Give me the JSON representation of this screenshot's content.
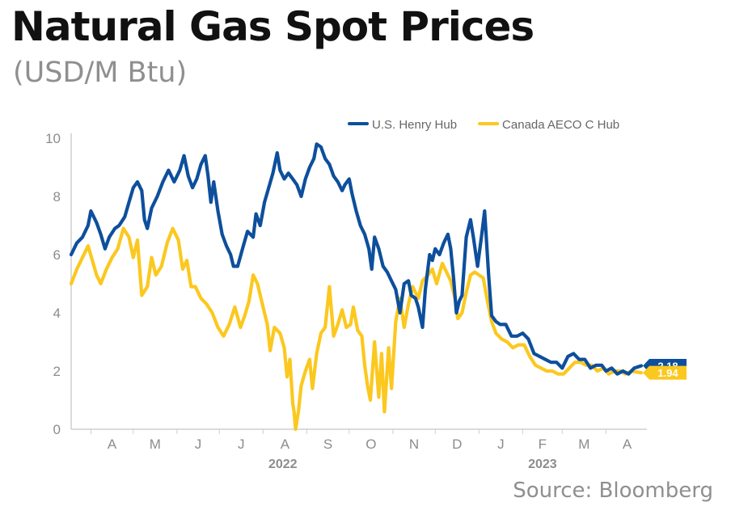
{
  "header": {
    "title": "Natural Gas Spot Prices",
    "subtitle": "(USD/M Btu)"
  },
  "source": "Source: Bloomberg",
  "colors": {
    "henry": "#0d4f9c",
    "aeco": "#fbc81f",
    "axis": "#cfcfcf",
    "text": "#8c8c8c"
  },
  "chart_data": {
    "type": "line",
    "ylim": [
      0,
      10
    ],
    "yticks": [
      "0",
      "2",
      "4",
      "6",
      "8",
      "10"
    ],
    "x_range": [
      "2022-03-18",
      "2023-04-30"
    ],
    "months": [
      {
        "label": "A",
        "date": "2022-04-01"
      },
      {
        "label": "M",
        "date": "2022-05-01"
      },
      {
        "label": "J",
        "date": "2022-06-01"
      },
      {
        "label": "J",
        "date": "2022-07-01"
      },
      {
        "label": "A",
        "date": "2022-08-01"
      },
      {
        "label": "S",
        "date": "2022-09-01"
      },
      {
        "label": "O",
        "date": "2022-10-01"
      },
      {
        "label": "N",
        "date": "2022-11-01"
      },
      {
        "label": "D",
        "date": "2022-12-01"
      },
      {
        "label": "J",
        "date": "2023-01-01"
      },
      {
        "label": "F",
        "date": "2023-02-01"
      },
      {
        "label": "M",
        "date": "2023-03-01"
      },
      {
        "label": "A",
        "date": "2023-04-01"
      }
    ],
    "years": [
      {
        "label": "2022",
        "date": "2022-08-15"
      },
      {
        "label": "2023",
        "date": "2023-02-15"
      }
    ],
    "legend": {
      "position": "top-right"
    },
    "series": [
      {
        "name": "U.S. Henry Hub",
        "color": "#0d4f9c",
        "end_label": "2.18",
        "points": [
          [
            "2022-03-18",
            6.0
          ],
          [
            "2022-03-22",
            6.4
          ],
          [
            "2022-03-26",
            6.6
          ],
          [
            "2022-03-30",
            7.0
          ],
          [
            "2022-04-01",
            7.5
          ],
          [
            "2022-04-05",
            7.1
          ],
          [
            "2022-04-08",
            6.7
          ],
          [
            "2022-04-11",
            6.2
          ],
          [
            "2022-04-14",
            6.6
          ],
          [
            "2022-04-18",
            6.9
          ],
          [
            "2022-04-21",
            7.0
          ],
          [
            "2022-04-25",
            7.3
          ],
          [
            "2022-04-28",
            7.8
          ],
          [
            "2022-05-01",
            8.3
          ],
          [
            "2022-05-04",
            8.5
          ],
          [
            "2022-05-07",
            8.2
          ],
          [
            "2022-05-09",
            7.2
          ],
          [
            "2022-05-11",
            6.9
          ],
          [
            "2022-05-14",
            7.6
          ],
          [
            "2022-05-18",
            8.0
          ],
          [
            "2022-05-22",
            8.5
          ],
          [
            "2022-05-26",
            8.9
          ],
          [
            "2022-05-30",
            8.5
          ],
          [
            "2022-06-03",
            8.9
          ],
          [
            "2022-06-06",
            9.4
          ],
          [
            "2022-06-09",
            8.7
          ],
          [
            "2022-06-12",
            8.3
          ],
          [
            "2022-06-15",
            8.6
          ],
          [
            "2022-06-18",
            9.1
          ],
          [
            "2022-06-21",
            9.4
          ],
          [
            "2022-06-23",
            8.7
          ],
          [
            "2022-06-25",
            7.8
          ],
          [
            "2022-06-27",
            8.5
          ],
          [
            "2022-06-30",
            7.5
          ],
          [
            "2022-07-03",
            6.7
          ],
          [
            "2022-07-06",
            6.3
          ],
          [
            "2022-07-09",
            6.0
          ],
          [
            "2022-07-11",
            5.6
          ],
          [
            "2022-07-14",
            5.6
          ],
          [
            "2022-07-18",
            6.3
          ],
          [
            "2022-07-21",
            6.8
          ],
          [
            "2022-07-25",
            6.6
          ],
          [
            "2022-07-27",
            7.4
          ],
          [
            "2022-07-30",
            7.0
          ],
          [
            "2022-08-02",
            7.8
          ],
          [
            "2022-08-05",
            8.3
          ],
          [
            "2022-08-08",
            8.8
          ],
          [
            "2022-08-11",
            9.5
          ],
          [
            "2022-08-13",
            8.9
          ],
          [
            "2022-08-16",
            8.6
          ],
          [
            "2022-08-19",
            8.8
          ],
          [
            "2022-08-22",
            8.6
          ],
          [
            "2022-08-25",
            8.4
          ],
          [
            "2022-08-28",
            8.0
          ],
          [
            "2022-08-31",
            8.6
          ],
          [
            "2022-09-03",
            9.0
          ],
          [
            "2022-09-06",
            9.3
          ],
          [
            "2022-09-08",
            9.8
          ],
          [
            "2022-09-11",
            9.7
          ],
          [
            "2022-09-14",
            9.3
          ],
          [
            "2022-09-17",
            9.1
          ],
          [
            "2022-09-20",
            8.7
          ],
          [
            "2022-09-23",
            8.5
          ],
          [
            "2022-09-26",
            8.2
          ],
          [
            "2022-09-28",
            8.4
          ],
          [
            "2022-10-01",
            8.6
          ],
          [
            "2022-10-03",
            8.1
          ],
          [
            "2022-10-06",
            7.5
          ],
          [
            "2022-10-09",
            7.0
          ],
          [
            "2022-10-12",
            6.7
          ],
          [
            "2022-10-15",
            6.2
          ],
          [
            "2022-10-17",
            5.5
          ],
          [
            "2022-10-19",
            6.6
          ],
          [
            "2022-10-22",
            6.2
          ],
          [
            "2022-10-25",
            5.6
          ],
          [
            "2022-10-28",
            5.4
          ],
          [
            "2022-10-31",
            5.1
          ],
          [
            "2022-11-03",
            4.8
          ],
          [
            "2022-11-06",
            4.0
          ],
          [
            "2022-11-09",
            5.0
          ],
          [
            "2022-11-12",
            5.1
          ],
          [
            "2022-11-14",
            4.6
          ],
          [
            "2022-11-17",
            4.5
          ],
          [
            "2022-11-19",
            4.2
          ],
          [
            "2022-11-22",
            3.5
          ],
          [
            "2022-11-24",
            4.8
          ],
          [
            "2022-11-27",
            6.0
          ],
          [
            "2022-11-29",
            5.8
          ],
          [
            "2022-12-01",
            6.2
          ],
          [
            "2022-12-04",
            6.0
          ],
          [
            "2022-12-07",
            6.4
          ],
          [
            "2022-12-10",
            6.7
          ],
          [
            "2022-12-12",
            6.2
          ],
          [
            "2022-12-14",
            5.2
          ],
          [
            "2022-12-16",
            4.0
          ],
          [
            "2022-12-18",
            4.4
          ],
          [
            "2022-12-20",
            4.6
          ],
          [
            "2022-12-23",
            6.6
          ],
          [
            "2022-12-26",
            7.2
          ],
          [
            "2022-12-28",
            6.6
          ],
          [
            "2022-12-31",
            5.6
          ],
          [
            "2023-01-03",
            6.7
          ],
          [
            "2023-01-05",
            7.5
          ],
          [
            "2023-01-08",
            5.2
          ],
          [
            "2023-01-10",
            3.9
          ],
          [
            "2023-01-13",
            3.7
          ],
          [
            "2023-01-16",
            3.6
          ],
          [
            "2023-01-20",
            3.6
          ],
          [
            "2023-01-24",
            3.2
          ],
          [
            "2023-01-28",
            3.2
          ],
          [
            "2023-02-01",
            3.3
          ],
          [
            "2023-02-05",
            3.1
          ],
          [
            "2023-02-09",
            2.6
          ],
          [
            "2023-02-13",
            2.5
          ],
          [
            "2023-02-17",
            2.4
          ],
          [
            "2023-02-21",
            2.3
          ],
          [
            "2023-02-25",
            2.3
          ],
          [
            "2023-03-01",
            2.1
          ],
          [
            "2023-03-05",
            2.5
          ],
          [
            "2023-03-09",
            2.6
          ],
          [
            "2023-03-13",
            2.4
          ],
          [
            "2023-03-17",
            2.4
          ],
          [
            "2023-03-21",
            2.1
          ],
          [
            "2023-03-25",
            2.2
          ],
          [
            "2023-03-29",
            2.2
          ],
          [
            "2023-04-01",
            2.0
          ],
          [
            "2023-04-05",
            2.1
          ],
          [
            "2023-04-09",
            1.9
          ],
          [
            "2023-04-13",
            2.0
          ],
          [
            "2023-04-17",
            1.9
          ],
          [
            "2023-04-21",
            2.1
          ],
          [
            "2023-04-26",
            2.18
          ]
        ]
      },
      {
        "name": "Canada AECO C Hub",
        "color": "#fbc81f",
        "end_label": "1.94",
        "points": [
          [
            "2022-03-18",
            5.0
          ],
          [
            "2022-03-22",
            5.5
          ],
          [
            "2022-03-26",
            5.9
          ],
          [
            "2022-03-30",
            6.3
          ],
          [
            "2022-04-02",
            5.8
          ],
          [
            "2022-04-05",
            5.3
          ],
          [
            "2022-04-08",
            5.0
          ],
          [
            "2022-04-12",
            5.5
          ],
          [
            "2022-04-16",
            5.9
          ],
          [
            "2022-04-20",
            6.2
          ],
          [
            "2022-04-24",
            6.9
          ],
          [
            "2022-04-28",
            6.6
          ],
          [
            "2022-05-01",
            5.9
          ],
          [
            "2022-05-04",
            6.5
          ],
          [
            "2022-05-07",
            4.6
          ],
          [
            "2022-05-11",
            4.9
          ],
          [
            "2022-05-14",
            5.9
          ],
          [
            "2022-05-17",
            5.3
          ],
          [
            "2022-05-21",
            5.6
          ],
          [
            "2022-05-25",
            6.4
          ],
          [
            "2022-05-29",
            6.9
          ],
          [
            "2022-06-02",
            6.5
          ],
          [
            "2022-06-05",
            5.5
          ],
          [
            "2022-06-08",
            5.8
          ],
          [
            "2022-06-11",
            4.9
          ],
          [
            "2022-06-14",
            4.9
          ],
          [
            "2022-06-18",
            4.5
          ],
          [
            "2022-06-22",
            4.3
          ],
          [
            "2022-06-26",
            4.0
          ],
          [
            "2022-06-30",
            3.5
          ],
          [
            "2022-07-04",
            3.2
          ],
          [
            "2022-07-08",
            3.6
          ],
          [
            "2022-07-12",
            4.2
          ],
          [
            "2022-07-16",
            3.5
          ],
          [
            "2022-07-19",
            3.9
          ],
          [
            "2022-07-22",
            4.4
          ],
          [
            "2022-07-25",
            5.3
          ],
          [
            "2022-07-28",
            5.0
          ],
          [
            "2022-08-01",
            4.2
          ],
          [
            "2022-08-04",
            3.6
          ],
          [
            "2022-08-06",
            2.7
          ],
          [
            "2022-08-09",
            3.5
          ],
          [
            "2022-08-13",
            3.3
          ],
          [
            "2022-08-16",
            2.8
          ],
          [
            "2022-08-18",
            1.8
          ],
          [
            "2022-08-20",
            2.4
          ],
          [
            "2022-08-22",
            0.9
          ],
          [
            "2022-08-23",
            0.6
          ],
          [
            "2022-08-24",
            0.0
          ],
          [
            "2022-08-26",
            0.6
          ],
          [
            "2022-08-28",
            1.5
          ],
          [
            "2022-08-31",
            2.0
          ],
          [
            "2022-09-03",
            2.4
          ],
          [
            "2022-09-05",
            1.4
          ],
          [
            "2022-09-08",
            2.6
          ],
          [
            "2022-09-11",
            3.3
          ],
          [
            "2022-09-14",
            3.5
          ],
          [
            "2022-09-17",
            4.9
          ],
          [
            "2022-09-20",
            3.2
          ],
          [
            "2022-09-23",
            3.6
          ],
          [
            "2022-09-26",
            4.1
          ],
          [
            "2022-09-29",
            3.5
          ],
          [
            "2022-10-02",
            3.6
          ],
          [
            "2022-10-04",
            4.2
          ],
          [
            "2022-10-07",
            3.4
          ],
          [
            "2022-10-10",
            3.2
          ],
          [
            "2022-10-12",
            2.2
          ],
          [
            "2022-10-14",
            1.5
          ],
          [
            "2022-10-16",
            1.0
          ],
          [
            "2022-10-19",
            3.0
          ],
          [
            "2022-10-22",
            1.1
          ],
          [
            "2022-10-24",
            2.6
          ],
          [
            "2022-10-26",
            0.6
          ],
          [
            "2022-10-29",
            2.8
          ],
          [
            "2022-10-31",
            1.4
          ],
          [
            "2022-11-03",
            3.7
          ],
          [
            "2022-11-06",
            4.5
          ],
          [
            "2022-11-09",
            3.5
          ],
          [
            "2022-11-12",
            4.3
          ],
          [
            "2022-11-15",
            4.9
          ],
          [
            "2022-11-19",
            4.5
          ],
          [
            "2022-11-22",
            5.1
          ],
          [
            "2022-11-26",
            5.3
          ],
          [
            "2022-11-29",
            5.5
          ],
          [
            "2022-12-02",
            5.0
          ],
          [
            "2022-12-06",
            5.7
          ],
          [
            "2022-12-09",
            5.4
          ],
          [
            "2022-12-12",
            5.1
          ],
          [
            "2022-12-15",
            4.5
          ],
          [
            "2022-12-17",
            3.8
          ],
          [
            "2022-12-20",
            4.0
          ],
          [
            "2022-12-23",
            4.7
          ],
          [
            "2022-12-26",
            5.3
          ],
          [
            "2022-12-29",
            5.4
          ],
          [
            "2023-01-01",
            5.3
          ],
          [
            "2023-01-04",
            5.2
          ],
          [
            "2023-01-07",
            4.4
          ],
          [
            "2023-01-10",
            3.7
          ],
          [
            "2023-01-13",
            3.3
          ],
          [
            "2023-01-17",
            3.1
          ],
          [
            "2023-01-21",
            3.0
          ],
          [
            "2023-01-25",
            2.8
          ],
          [
            "2023-01-29",
            2.9
          ],
          [
            "2023-02-02",
            2.9
          ],
          [
            "2023-02-06",
            2.5
          ],
          [
            "2023-02-10",
            2.2
          ],
          [
            "2023-02-14",
            2.1
          ],
          [
            "2023-02-18",
            2.0
          ],
          [
            "2023-02-22",
            2.0
          ],
          [
            "2023-02-26",
            1.9
          ],
          [
            "2023-03-02",
            1.9
          ],
          [
            "2023-03-06",
            2.1
          ],
          [
            "2023-03-10",
            2.3
          ],
          [
            "2023-03-14",
            2.3
          ],
          [
            "2023-03-18",
            2.2
          ],
          [
            "2023-03-22",
            2.2
          ],
          [
            "2023-03-26",
            2.0
          ],
          [
            "2023-03-30",
            2.1
          ],
          [
            "2023-04-03",
            1.9
          ],
          [
            "2023-04-07",
            2.0
          ],
          [
            "2023-04-11",
            2.0
          ],
          [
            "2023-04-15",
            1.9
          ],
          [
            "2023-04-19",
            2.0
          ],
          [
            "2023-04-26",
            1.94
          ]
        ]
      }
    ]
  }
}
